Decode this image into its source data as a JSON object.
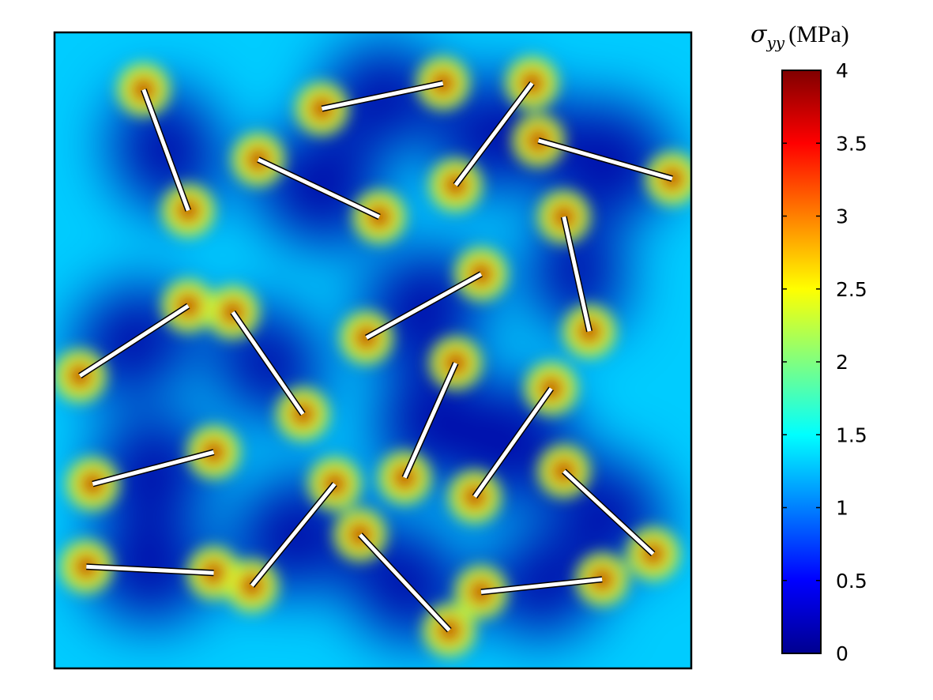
{
  "chart_data": {
    "type": "heatmap",
    "title": "",
    "colorbar": {
      "title_symbol": "σ",
      "title_subscript": "yy",
      "title_unit": "(MPa)",
      "range": [
        0,
        4
      ],
      "ticks": [
        "0",
        "0.5",
        "1",
        "1.5",
        "2",
        "2.5",
        "3",
        "3.5",
        "4"
      ],
      "colormap": "jet",
      "colors": [
        "#00008f",
        "#0000ff",
        "#0080ff",
        "#00ffff",
        "#80ff80",
        "#ffff00",
        "#ff8000",
        "#ff0000",
        "#800000"
      ]
    },
    "field": {
      "background_level": 1.3,
      "description_values_in": "MPa"
    },
    "cracks": [
      {
        "x1": 0.14,
        "y1": 0.09,
        "x2": 0.21,
        "y2": 0.28
      },
      {
        "x1": 0.42,
        "y1": 0.12,
        "x2": 0.61,
        "y2": 0.08
      },
      {
        "x1": 0.75,
        "y1": 0.08,
        "x2": 0.63,
        "y2": 0.24
      },
      {
        "x1": 0.32,
        "y1": 0.2,
        "x2": 0.51,
        "y2": 0.29
      },
      {
        "x1": 0.76,
        "y1": 0.17,
        "x2": 0.97,
        "y2": 0.23
      },
      {
        "x1": 0.8,
        "y1": 0.29,
        "x2": 0.84,
        "y2": 0.47
      },
      {
        "x1": 0.21,
        "y1": 0.43,
        "x2": 0.04,
        "y2": 0.54
      },
      {
        "x1": 0.28,
        "y1": 0.44,
        "x2": 0.39,
        "y2": 0.6
      },
      {
        "x1": 0.67,
        "y1": 0.38,
        "x2": 0.49,
        "y2": 0.48
      },
      {
        "x1": 0.63,
        "y1": 0.52,
        "x2": 0.55,
        "y2": 0.7
      },
      {
        "x1": 0.78,
        "y1": 0.56,
        "x2": 0.66,
        "y2": 0.73
      },
      {
        "x1": 0.25,
        "y1": 0.66,
        "x2": 0.06,
        "y2": 0.71
      },
      {
        "x1": 0.8,
        "y1": 0.69,
        "x2": 0.94,
        "y2": 0.82
      },
      {
        "x1": 0.05,
        "y1": 0.84,
        "x2": 0.25,
        "y2": 0.85
      },
      {
        "x1": 0.44,
        "y1": 0.71,
        "x2": 0.31,
        "y2": 0.87
      },
      {
        "x1": 0.48,
        "y1": 0.79,
        "x2": 0.62,
        "y2": 0.94
      },
      {
        "x1": 0.67,
        "y1": 0.88,
        "x2": 0.86,
        "y2": 0.86
      }
    ]
  }
}
